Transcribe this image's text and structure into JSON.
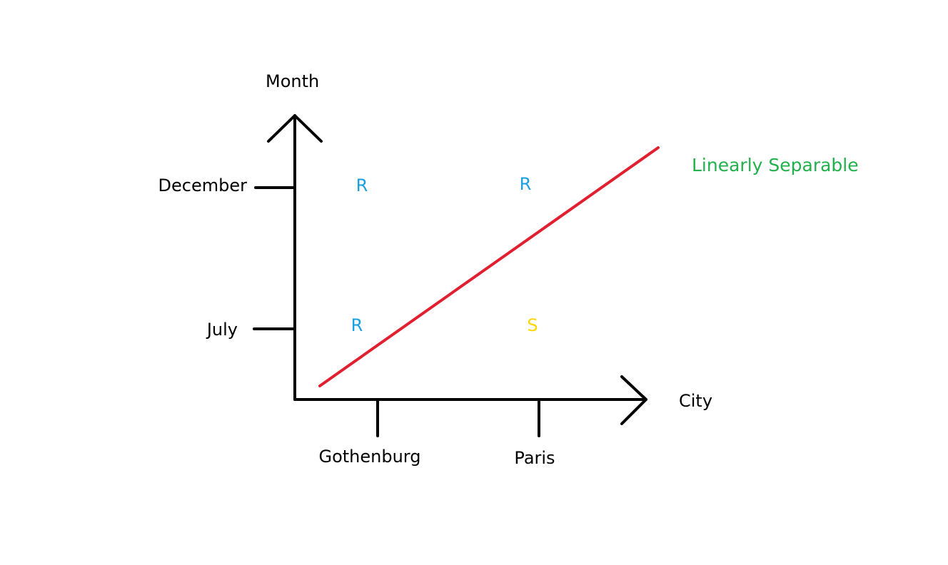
{
  "axes": {
    "y_label": "Month",
    "x_label": "City",
    "y_ticks": [
      "December",
      "July"
    ],
    "x_ticks": [
      "Gothenburg",
      "Paris"
    ]
  },
  "points": [
    {
      "label": "R",
      "city": "Gothenburg",
      "month": "December",
      "color": "#1a9fe0"
    },
    {
      "label": "R",
      "city": "Paris",
      "month": "December",
      "color": "#1a9fe0"
    },
    {
      "label": "R",
      "city": "Gothenburg",
      "month": "July",
      "color": "#1a9fe0"
    },
    {
      "label": "S",
      "city": "Paris",
      "month": "July",
      "color": "#ffd600"
    }
  ],
  "separator": {
    "label": "Linearly Separable",
    "line_color": "#e02030",
    "label_color": "#22b04c"
  },
  "colors": {
    "axis": "#000000"
  }
}
